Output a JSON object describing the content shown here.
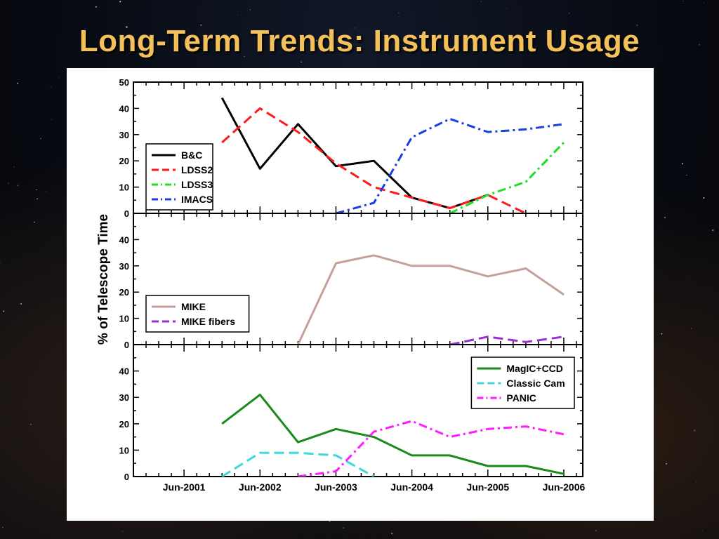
{
  "title": "Long-Term Trends: Instrument Usage",
  "colors": {
    "title": "#f4c05a",
    "bc": "#000000",
    "ldss2": "#ff1a1a",
    "ldss3": "#22dd22",
    "imacs": "#1a3fe0",
    "mike": "#c4a09a",
    "mike_fibers": "#9b2fd0",
    "magic": "#1a8a1a",
    "classic": "#3fd8d8",
    "panic": "#ff1aff"
  },
  "chart_data": {
    "type": "line",
    "ylabel": "% of Telescope Time",
    "x_tick_labels": [
      "Jun-2001",
      "Jun-2002",
      "Jun-2003",
      "Jun-2004",
      "Jun-2005",
      "Jun-2006"
    ],
    "x_tick_dates": [
      "2001-06",
      "2002-06",
      "2003-06",
      "2004-06",
      "2005-06",
      "2006-06"
    ],
    "xlim": [
      "2000-10",
      "2006-09"
    ],
    "grid": false,
    "panels": [
      {
        "ylim": [
          0,
          50
        ],
        "y_ticks": [
          0,
          10,
          20,
          30,
          40,
          50
        ],
        "legend_position": "middle-left",
        "series": [
          {
            "name": "B&C",
            "color_key": "bc",
            "style": "solid",
            "x": [
              "2001-12",
              "2002-06",
              "2002-12",
              "2003-06",
              "2003-12",
              "2004-06",
              "2004-12",
              "2005-06"
            ],
            "values": [
              44,
              17,
              34,
              18,
              20,
              6,
              2,
              7
            ]
          },
          {
            "name": "LDSS2",
            "color_key": "ldss2",
            "style": "dashed",
            "x": [
              "2001-12",
              "2002-06",
              "2002-12",
              "2003-06",
              "2003-12",
              "2004-06",
              "2004-12",
              "2005-06",
              "2005-12"
            ],
            "values": [
              27,
              40,
              31,
              19,
              10,
              6,
              2,
              7,
              0
            ]
          },
          {
            "name": "LDSS3",
            "color_key": "ldss3",
            "style": "dashdot",
            "x": [
              "2004-12",
              "2005-06",
              "2005-12",
              "2006-06"
            ],
            "values": [
              0,
              7,
              12,
              27
            ]
          },
          {
            "name": "IMACS",
            "color_key": "imacs",
            "style": "dashdot",
            "x": [
              "2003-06",
              "2003-12",
              "2004-06",
              "2004-12",
              "2005-06",
              "2005-12",
              "2006-06"
            ],
            "values": [
              0,
              4,
              29,
              36,
              31,
              32,
              34
            ]
          }
        ]
      },
      {
        "ylim": [
          0,
          50
        ],
        "y_ticks": [
          0,
          10,
          20,
          30,
          40
        ],
        "legend_position": "bottom-left",
        "series": [
          {
            "name": "MIKE",
            "color_key": "mike",
            "style": "solid",
            "x": [
              "2002-12",
              "2003-06",
              "2003-12",
              "2004-06",
              "2004-12",
              "2005-06",
              "2005-12",
              "2006-06"
            ],
            "values": [
              0,
              31,
              34,
              30,
              30,
              26,
              29,
              19
            ]
          },
          {
            "name": "MIKE fibers",
            "color_key": "mike_fibers",
            "style": "dashed",
            "x": [
              "2004-12",
              "2005-06",
              "2005-12",
              "2006-06"
            ],
            "values": [
              0,
              3,
              1,
              3
            ]
          }
        ]
      },
      {
        "ylim": [
          0,
          50
        ],
        "y_ticks": [
          0,
          10,
          20,
          30,
          40
        ],
        "legend_position": "top-right",
        "series": [
          {
            "name": "MagIC+CCD",
            "color_key": "magic",
            "style": "solid",
            "x": [
              "2001-12",
              "2002-06",
              "2002-12",
              "2003-06",
              "2003-12",
              "2004-06",
              "2004-12",
              "2005-06",
              "2005-12",
              "2006-06"
            ],
            "values": [
              20,
              31,
              13,
              18,
              15,
              8,
              8,
              4,
              4,
              1
            ]
          },
          {
            "name": "Classic Cam",
            "color_key": "classic",
            "style": "dashed",
            "x": [
              "2001-12",
              "2002-06",
              "2002-12",
              "2003-06",
              "2003-12"
            ],
            "values": [
              0,
              9,
              9,
              8,
              0
            ]
          },
          {
            "name": "PANIC",
            "color_key": "panic",
            "style": "dashdot",
            "x": [
              "2002-12",
              "2003-06",
              "2003-12",
              "2004-06",
              "2004-12",
              "2005-06",
              "2005-12",
              "2006-06"
            ],
            "values": [
              0,
              2,
              17,
              21,
              15,
              18,
              19,
              16
            ]
          }
        ]
      }
    ]
  }
}
